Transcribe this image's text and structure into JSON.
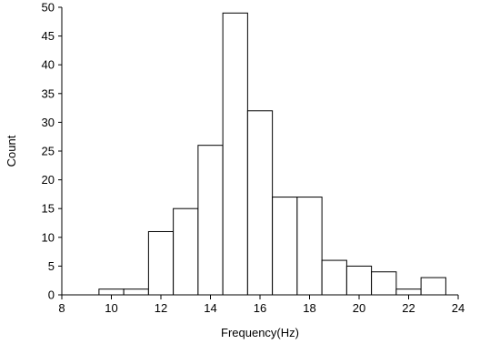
{
  "chart_data": {
    "type": "bar",
    "title": "",
    "xlabel": "Frequency(Hz)",
    "ylabel": "Count",
    "xlim": [
      8,
      24
    ],
    "ylim": [
      0,
      50
    ],
    "x_ticks": [
      "8",
      "10",
      "12",
      "14",
      "16",
      "18",
      "20",
      "22",
      "24"
    ],
    "y_ticks": [
      "0",
      "5",
      "10",
      "15",
      "20",
      "25",
      "30",
      "35",
      "40",
      "45",
      "50"
    ],
    "bin_width": 1,
    "bins": [
      {
        "start": 9.5,
        "end": 10.5,
        "count": 1
      },
      {
        "start": 10.5,
        "end": 11.5,
        "count": 1
      },
      {
        "start": 11.5,
        "end": 12.5,
        "count": 11
      },
      {
        "start": 12.5,
        "end": 13.5,
        "count": 15
      },
      {
        "start": 13.5,
        "end": 14.5,
        "count": 26
      },
      {
        "start": 14.5,
        "end": 15.5,
        "count": 49
      },
      {
        "start": 15.5,
        "end": 16.5,
        "count": 32
      },
      {
        "start": 16.5,
        "end": 17.5,
        "count": 17
      },
      {
        "start": 17.5,
        "end": 18.5,
        "count": 17
      },
      {
        "start": 18.5,
        "end": 19.5,
        "count": 6
      },
      {
        "start": 19.5,
        "end": 20.5,
        "count": 5
      },
      {
        "start": 20.5,
        "end": 21.5,
        "count": 4
      },
      {
        "start": 21.5,
        "end": 22.5,
        "count": 1
      },
      {
        "start": 22.5,
        "end": 23.5,
        "count": 3
      }
    ],
    "grid": false,
    "colors": {
      "bar_fill": "#ffffff",
      "bar_stroke": "#000000",
      "axis": "#000000"
    }
  }
}
